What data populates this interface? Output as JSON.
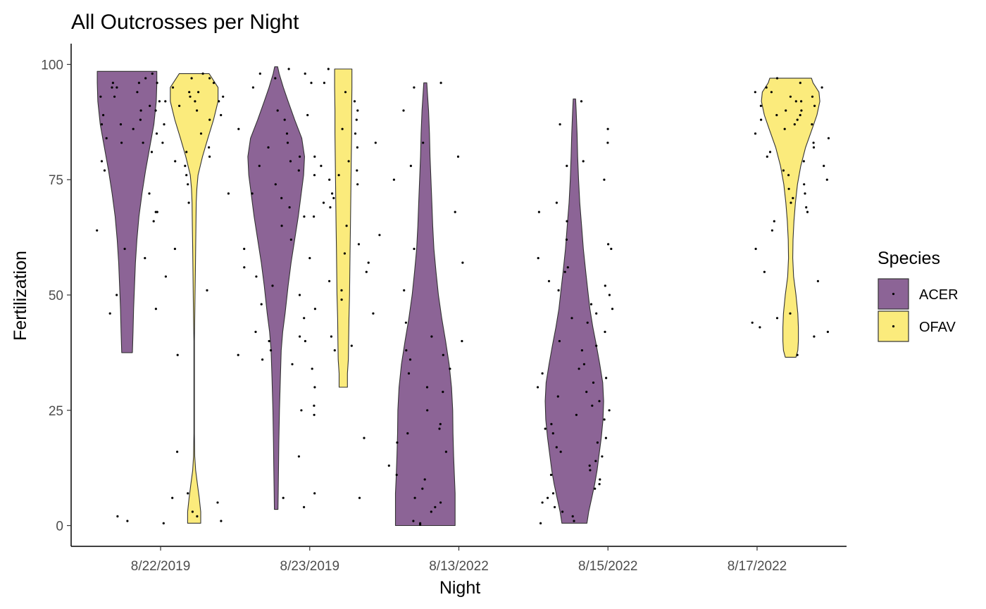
{
  "chart_data": {
    "type": "violin",
    "title": "All Outcrosses per Night",
    "xlabel": "Night",
    "ylabel": "Fertilization",
    "categories": [
      "8/22/2019",
      "8/23/2019",
      "8/13/2022",
      "8/15/2022",
      "8/17/2022"
    ],
    "ylim": [
      -4.5,
      104.5
    ],
    "yticks": [
      0,
      25,
      50,
      75,
      100
    ],
    "grid": false,
    "legend": {
      "title": "Species",
      "placement": "right",
      "entries": [
        {
          "name": "ACER",
          "color": "#8c6496"
        },
        {
          "name": "OFAV",
          "color": "#fbeb7c"
        }
      ]
    },
    "series": [
      {
        "name": "ACER",
        "color": "#8c6496",
        "violins": [
          {
            "category": "8/22/2019",
            "min": 37.5,
            "max": 98.5,
            "profile": [
              [
                37.5,
                0.18
              ],
              [
                42,
                0.2
              ],
              [
                47,
                0.22
              ],
              [
                52,
                0.25
              ],
              [
                57,
                0.28
              ],
              [
                62,
                0.33
              ],
              [
                67,
                0.4
              ],
              [
                72,
                0.5
              ],
              [
                77,
                0.62
              ],
              [
                82,
                0.76
              ],
              [
                87,
                0.9
              ],
              [
                92,
                0.98
              ],
              [
                96,
                1.0
              ],
              [
                98.5,
                1.0
              ]
            ]
          },
          {
            "category": "8/23/2019",
            "min": 3.5,
            "max": 99.5,
            "profile": [
              [
                3.5,
                0.06
              ],
              [
                8,
                0.07
              ],
              [
                13,
                0.08
              ],
              [
                18,
                0.09
              ],
              [
                25,
                0.11
              ],
              [
                32,
                0.14
              ],
              [
                38,
                0.17
              ],
              [
                42,
                0.22
              ],
              [
                46,
                0.3
              ],
              [
                52,
                0.4
              ],
              [
                57,
                0.5
              ],
              [
                62,
                0.62
              ],
              [
                67,
                0.74
              ],
              [
                72,
                0.84
              ],
              [
                76,
                0.92
              ],
              [
                80,
                0.95
              ],
              [
                84,
                0.86
              ],
              [
                88,
                0.62
              ],
              [
                92,
                0.4
              ],
              [
                95,
                0.24
              ],
              [
                98,
                0.1
              ],
              [
                99.5,
                0.05
              ]
            ]
          },
          {
            "category": "8/13/2022",
            "min": 0,
            "max": 96,
            "profile": [
              [
                0,
                1.0
              ],
              [
                3,
                1.0
              ],
              [
                7,
                1.0
              ],
              [
                10,
                0.98
              ],
              [
                15,
                0.95
              ],
              [
                20,
                0.93
              ],
              [
                25,
                0.92
              ],
              [
                30,
                0.88
              ],
              [
                35,
                0.8
              ],
              [
                40,
                0.68
              ],
              [
                45,
                0.55
              ],
              [
                50,
                0.44
              ],
              [
                55,
                0.36
              ],
              [
                60,
                0.29
              ],
              [
                65,
                0.25
              ],
              [
                70,
                0.22
              ],
              [
                75,
                0.19
              ],
              [
                80,
                0.16
              ],
              [
                85,
                0.14
              ],
              [
                90,
                0.11
              ],
              [
                94,
                0.07
              ],
              [
                96,
                0.05
              ]
            ]
          },
          {
            "category": "8/15/2022",
            "min": 0.5,
            "max": 92.5,
            "profile": [
              [
                0.5,
                0.42
              ],
              [
                3,
                0.48
              ],
              [
                6,
                0.58
              ],
              [
                9,
                0.68
              ],
              [
                12,
                0.76
              ],
              [
                15,
                0.82
              ],
              [
                19,
                0.9
              ],
              [
                23,
                0.96
              ],
              [
                27,
                0.98
              ],
              [
                31,
                0.95
              ],
              [
                35,
                0.85
              ],
              [
                39,
                0.74
              ],
              [
                43,
                0.62
              ],
              [
                47,
                0.52
              ],
              [
                51,
                0.45
              ],
              [
                55,
                0.38
              ],
              [
                60,
                0.3
              ],
              [
                65,
                0.24
              ],
              [
                70,
                0.18
              ],
              [
                75,
                0.14
              ],
              [
                80,
                0.11
              ],
              [
                85,
                0.09
              ],
              [
                90,
                0.06
              ],
              [
                92.5,
                0.04
              ]
            ]
          }
        ]
      },
      {
        "name": "OFAV",
        "color": "#fbeb7c",
        "violins": [
          {
            "category": "8/22/2019",
            "min": 0.5,
            "max": 98,
            "profile": [
              [
                0.5,
                0.22
              ],
              [
                3,
                0.22
              ],
              [
                6,
                0.17
              ],
              [
                9,
                0.11
              ],
              [
                12,
                0.05
              ],
              [
                15,
                0.02
              ],
              [
                20,
                0.01
              ],
              [
                30,
                0.01
              ],
              [
                40,
                0.01
              ],
              [
                45,
                0.02
              ],
              [
                50,
                0.03
              ],
              [
                55,
                0.04
              ],
              [
                60,
                0.05
              ],
              [
                65,
                0.06
              ],
              [
                70,
                0.07
              ],
              [
                73,
                0.09
              ],
              [
                76,
                0.13
              ],
              [
                80,
                0.28
              ],
              [
                84,
                0.46
              ],
              [
                88,
                0.65
              ],
              [
                92,
                0.8
              ],
              [
                95,
                0.8
              ],
              [
                97,
                0.6
              ],
              [
                98,
                0.5
              ]
            ]
          },
          {
            "category": "8/23/2019",
            "min": 30,
            "max": 99,
            "profile": [
              [
                30,
                0.14
              ],
              [
                33,
                0.14
              ],
              [
                36,
                0.17
              ],
              [
                40,
                0.18
              ],
              [
                45,
                0.19
              ],
              [
                50,
                0.21
              ],
              [
                55,
                0.22
              ],
              [
                60,
                0.23
              ],
              [
                65,
                0.24
              ],
              [
                70,
                0.25
              ],
              [
                75,
                0.26
              ],
              [
                80,
                0.27
              ],
              [
                85,
                0.28
              ],
              [
                90,
                0.28
              ],
              [
                95,
                0.29
              ],
              [
                99,
                0.29
              ]
            ]
          },
          {
            "category": "8/17/2022",
            "min": 36.5,
            "max": 97,
            "profile": [
              [
                36.5,
                0.18
              ],
              [
                38,
                0.24
              ],
              [
                40,
                0.26
              ],
              [
                43,
                0.26
              ],
              [
                46,
                0.24
              ],
              [
                50,
                0.18
              ],
              [
                54,
                0.1
              ],
              [
                58,
                0.07
              ],
              [
                62,
                0.08
              ],
              [
                66,
                0.11
              ],
              [
                70,
                0.16
              ],
              [
                74,
                0.23
              ],
              [
                78,
                0.34
              ],
              [
                82,
                0.5
              ],
              [
                86,
                0.72
              ],
              [
                89,
                0.88
              ],
              [
                92,
                0.98
              ],
              [
                94,
                0.95
              ],
              [
                96,
                0.75
              ],
              [
                97,
                0.7
              ]
            ]
          }
        ]
      }
    ],
    "points": [
      {
        "category": "8/22/2019",
        "species": "ACER",
        "values": [
          96,
          95,
          94,
          92,
          90,
          88,
          87,
          85,
          83,
          98,
          97,
          93,
          91,
          89,
          86,
          84,
          77,
          72,
          68,
          66,
          64,
          60,
          58,
          50,
          46,
          95,
          92,
          90,
          87,
          83,
          81,
          79,
          93,
          96,
          2,
          1,
          0.5
        ]
      },
      {
        "category": "8/22/2019",
        "species": "OFAV",
        "values": [
          97,
          96,
          95,
          94,
          93,
          92,
          91,
          90,
          89,
          88,
          87,
          85,
          83,
          82,
          81,
          80,
          79,
          78,
          76,
          74,
          72,
          70,
          68,
          60,
          54,
          51,
          47,
          37,
          16,
          7,
          6,
          5,
          3,
          2,
          1,
          98,
          97,
          96,
          94,
          93,
          92
        ]
      },
      {
        "category": "8/23/2019",
        "species": "ACER",
        "values": [
          99,
          98,
          97,
          96,
          95,
          90,
          89,
          88,
          86,
          85,
          83,
          82,
          80,
          79,
          78,
          77,
          76,
          74,
          72,
          71,
          69,
          67,
          65,
          62,
          60,
          58,
          56,
          54,
          52,
          50,
          48,
          45,
          42,
          41,
          40,
          38,
          37,
          36,
          35,
          25,
          15,
          7,
          6,
          4
        ]
      },
      {
        "category": "8/23/2019",
        "species": "OFAV",
        "values": [
          99,
          98,
          96,
          94,
          92,
          90,
          88,
          86,
          85,
          83,
          82,
          80,
          79,
          78,
          77,
          76,
          75,
          74,
          72,
          71,
          70,
          69,
          67,
          65,
          63,
          61,
          59,
          57,
          55,
          53,
          51,
          49,
          47,
          46,
          41,
          40,
          39,
          38,
          34,
          30,
          26,
          24,
          19,
          6
        ]
      },
      {
        "category": "8/13/2022",
        "species": "ACER",
        "values": [
          96,
          95,
          90,
          83,
          80,
          78,
          75,
          68,
          60,
          57,
          51,
          44,
          41,
          40,
          38,
          37,
          36,
          34,
          33,
          30,
          29,
          25,
          22,
          21,
          20,
          18,
          16,
          13,
          11,
          10,
          8,
          6,
          5,
          4,
          3,
          1,
          0.5,
          0.2
        ]
      },
      {
        "category": "8/15/2022",
        "species": "ACER",
        "values": [
          92,
          87,
          86,
          83,
          79,
          78,
          75,
          70,
          68,
          66,
          62,
          61,
          60,
          58,
          56,
          55,
          53,
          52,
          51,
          50,
          48,
          47,
          46,
          45,
          44,
          42,
          40,
          39,
          38,
          35,
          34,
          33,
          32,
          31,
          30,
          29,
          28,
          27,
          26,
          25,
          24,
          23,
          22,
          21,
          20,
          19,
          18,
          17,
          16,
          15,
          14,
          13,
          12,
          11,
          10,
          9,
          8,
          7,
          6,
          5,
          4,
          3,
          2,
          1,
          0.5
        ]
      },
      {
        "category": "8/17/2022",
        "species": "OFAV",
        "values": [
          97,
          96,
          95,
          95,
          94,
          94,
          93,
          93,
          92,
          92,
          91,
          91,
          90,
          90,
          89,
          89,
          88,
          88,
          87,
          87,
          86,
          85,
          84,
          83,
          82,
          81,
          80,
          79,
          78,
          77,
          76,
          75,
          74,
          73,
          72,
          71,
          70,
          69,
          68,
          66,
          64,
          60,
          55,
          53,
          46,
          45,
          44,
          43,
          42,
          41,
          37
        ]
      }
    ]
  }
}
